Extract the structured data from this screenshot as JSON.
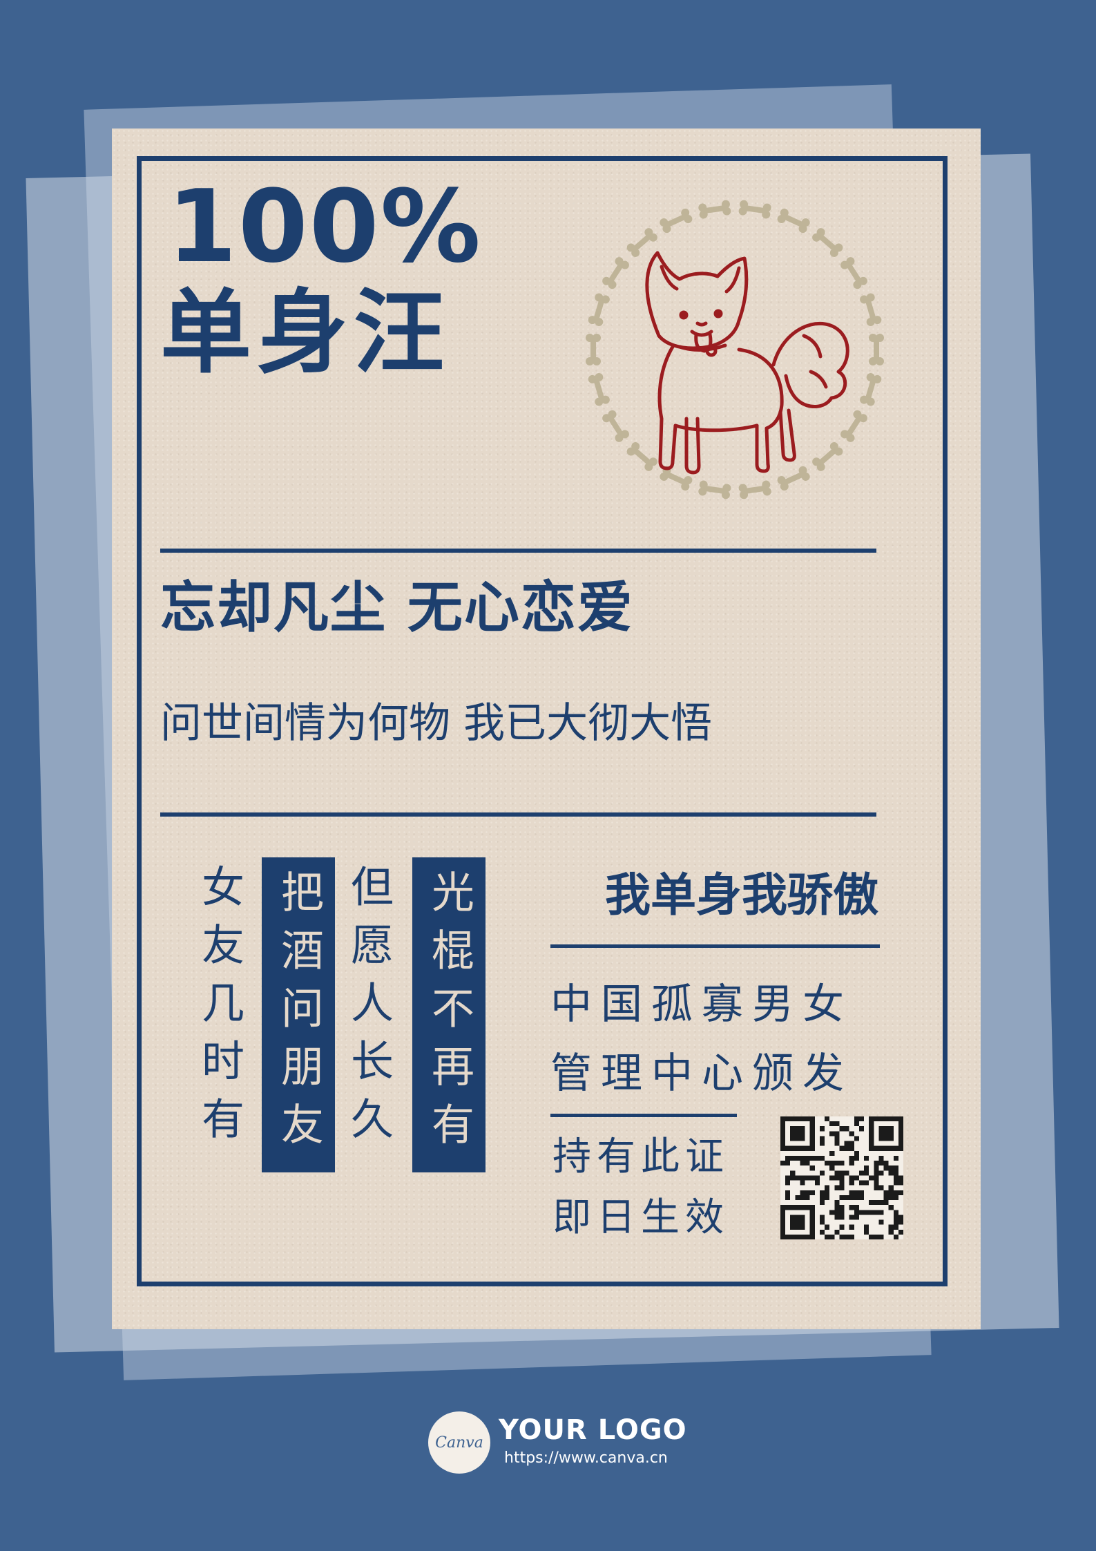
{
  "poster": {
    "percent": "100%",
    "title": "单身汪",
    "slogan": "忘却凡尘 无心恋爱",
    "subslogan": "问世间情为何物 我已大彻大悟",
    "columns": [
      "女友几时有",
      "把酒问朋友",
      "但愿人长久",
      "光棍不再有"
    ],
    "proud": "我单身我骄傲",
    "issuer_line1": "中国孤寡男女",
    "issuer_line2": "管理中心颁发",
    "valid_line1": "持有此证",
    "valid_line2": "即日生效"
  },
  "footer": {
    "badge": "Canva",
    "logo_text": "YOUR LOGO",
    "url": "https://www.canva.cn"
  },
  "colors": {
    "background": "#3e6290",
    "paper": "#e5d9cb",
    "navy": "#1d3f6e",
    "dog_red": "#9b1c1f",
    "bone_beige": "#bfb498"
  },
  "icons": [
    "dog-illustration",
    "bone-ring",
    "qr-code-icon"
  ]
}
